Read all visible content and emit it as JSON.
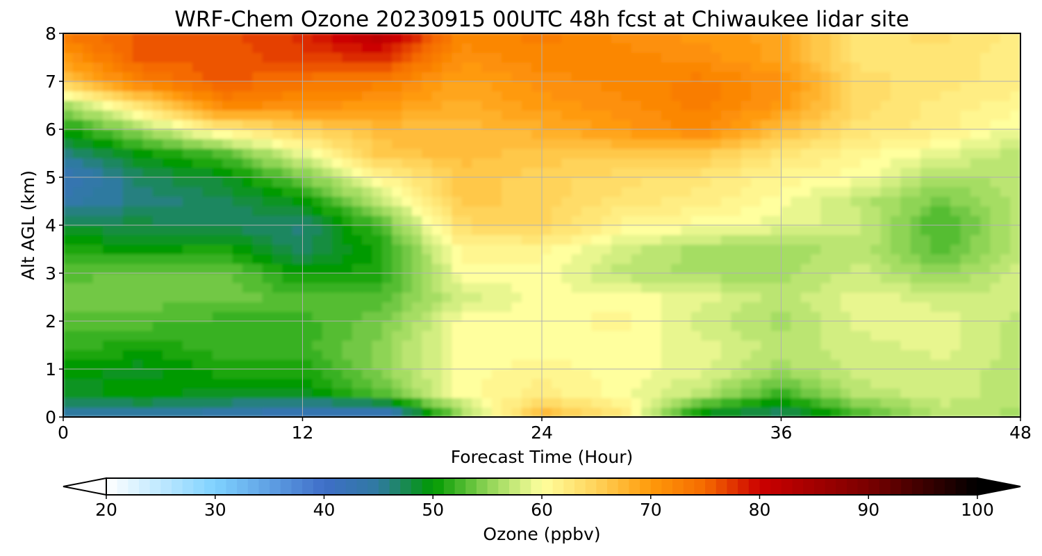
{
  "chart_data": {
    "type": "heatmap",
    "title": "WRF-Chem Ozone  20230915 00UTC 48h fcst at Chiwaukee lidar site",
    "xlabel": "Forecast Time (Hour)",
    "ylabel": "Alt AGL (km)",
    "xlim": [
      0,
      48
    ],
    "ylim": [
      0,
      8
    ],
    "xticks": [
      "0",
      "12",
      "24",
      "36",
      "48"
    ],
    "yticks": [
      "0",
      "1",
      "2",
      "3",
      "4",
      "5",
      "6",
      "7",
      "8"
    ],
    "grid": true,
    "x": [
      0,
      4,
      8,
      12,
      16,
      20,
      24,
      28,
      32,
      36,
      40,
      44,
      48
    ],
    "y": [
      0,
      0.5,
      1,
      1.5,
      2,
      2.5,
      3,
      3.5,
      4,
      4.5,
      5,
      5.5,
      6,
      6.5,
      7,
      7.5,
      8
    ],
    "z": [
      [
        44,
        44,
        43,
        41,
        40,
        55,
        68,
        63,
        48,
        46,
        52,
        57,
        56
      ],
      [
        49,
        50,
        49,
        49,
        53,
        60,
        62,
        60,
        57,
        52,
        57,
        58,
        57
      ],
      [
        50,
        49,
        51,
        51,
        55,
        60,
        61,
        60,
        59,
        56,
        58,
        58,
        57
      ],
      [
        52,
        51,
        52,
        52,
        55,
        60,
        60,
        60,
        59,
        57,
        58,
        59,
        57
      ],
      [
        53,
        53,
        52,
        52,
        54,
        60,
        60,
        61,
        58,
        56,
        59,
        59,
        57
      ],
      [
        54,
        54,
        54,
        53,
        53,
        58,
        60,
        60,
        59,
        57,
        59,
        58,
        58
      ],
      [
        53,
        54,
        54,
        50,
        51,
        60,
        60,
        57,
        56,
        56,
        58,
        55,
        58
      ],
      [
        51,
        50,
        51,
        47,
        51,
        61,
        61,
        58,
        56,
        56,
        57,
        53,
        57
      ],
      [
        48,
        48,
        47,
        46,
        53,
        64,
        65,
        61,
        60,
        59,
        58,
        52,
        57
      ],
      [
        44,
        46,
        47,
        50,
        57,
        66,
        65,
        63,
        62,
        60,
        57,
        54,
        57
      ],
      [
        42,
        47,
        49,
        54,
        61,
        66,
        65,
        64,
        63,
        61,
        60,
        56,
        57
      ],
      [
        46,
        50,
        53,
        59,
        66,
        67,
        66,
        66,
        66,
        63,
        61,
        59,
        57
      ],
      [
        50,
        56,
        62,
        65,
        67,
        67,
        68,
        70,
        72,
        67,
        63,
        62,
        59
      ],
      [
        56,
        63,
        72,
        71,
        70,
        68,
        70,
        71,
        73,
        70,
        64,
        62,
        61
      ],
      [
        66,
        73,
        76,
        74,
        73,
        69,
        71,
        72,
        73,
        71,
        64,
        63,
        62
      ],
      [
        70,
        76,
        76,
        77,
        78,
        71,
        72,
        72,
        71,
        69,
        63,
        63,
        62
      ],
      [
        74,
        76,
        76,
        78,
        83,
        72,
        73,
        71,
        70,
        69,
        63,
        64,
        62
      ]
    ],
    "colorbar": {
      "label": "Ozone  (ppbv)",
      "min": 20,
      "max": 100,
      "ticks": [
        "20",
        "30",
        "40",
        "50",
        "60",
        "70",
        "80",
        "90",
        "100"
      ],
      "extend": "both",
      "stops": [
        {
          "v": 20,
          "c": "#ffffff"
        },
        {
          "v": 30,
          "c": "#7fd2ff"
        },
        {
          "v": 40,
          "c": "#3f6ec8"
        },
        {
          "v": 45,
          "c": "#2f7aa0"
        },
        {
          "v": 50,
          "c": "#009a00"
        },
        {
          "v": 55,
          "c": "#8ed455"
        },
        {
          "v": 60,
          "c": "#ffff9e"
        },
        {
          "v": 65,
          "c": "#ffd35a"
        },
        {
          "v": 70,
          "c": "#ff9a0a"
        },
        {
          "v": 75,
          "c": "#f56a00"
        },
        {
          "v": 80,
          "c": "#cc0000"
        },
        {
          "v": 90,
          "c": "#7a0000"
        },
        {
          "v": 100,
          "c": "#000000"
        }
      ]
    }
  }
}
